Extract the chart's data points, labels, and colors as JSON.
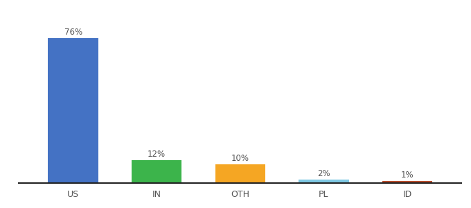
{
  "categories": [
    "US",
    "IN",
    "OTH",
    "PL",
    "ID"
  ],
  "values": [
    76,
    12,
    10,
    2,
    1
  ],
  "bar_colors": [
    "#4472c4",
    "#3cb44b",
    "#f5a623",
    "#7ec8e3",
    "#b84c2b"
  ],
  "ylim": [
    0,
    83
  ],
  "background_color": "#ffffff",
  "label_fontsize": 8.5,
  "tick_fontsize": 9,
  "bar_width": 0.6
}
